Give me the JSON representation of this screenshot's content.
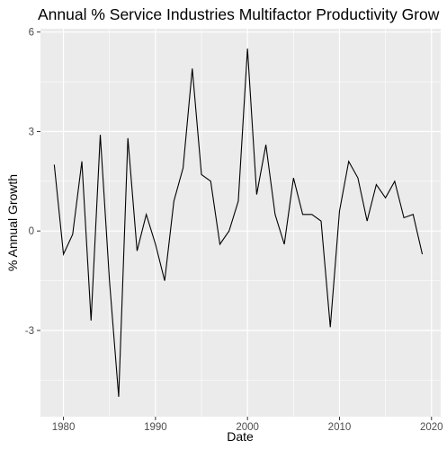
{
  "chart_data": {
    "type": "line",
    "title": "Annual % Service Industries Multifactor Productivity Grow",
    "xlabel": "Date",
    "ylabel": "% Annual Growth",
    "xlim": [
      1977.5,
      2021
    ],
    "ylim": [
      -5.6,
      6.1
    ],
    "x_ticks": [
      1980,
      1990,
      2000,
      2010,
      2020
    ],
    "x_tick_labels": [
      "1980",
      "1990",
      "2000",
      "2010",
      "2020"
    ],
    "y_ticks": [
      -3,
      0,
      3,
      6
    ],
    "y_tick_labels": [
      "-3",
      "0",
      "3",
      "6"
    ],
    "grid": true,
    "legend": "none",
    "colors": {
      "panel": "#ebebeb",
      "grid": "#ffffff",
      "line": "#000000",
      "tick_text": "#4d4d4d",
      "label_text": "#000000"
    },
    "series": [
      {
        "x": [
          1979,
          1980,
          1981,
          1982,
          1983,
          1984,
          1985,
          1986,
          1987,
          1988,
          1989,
          1990,
          1991,
          1992,
          1993,
          1994,
          1995,
          1996,
          1997,
          1998,
          1999,
          2000,
          2001,
          2002,
          2003,
          2004,
          2005,
          2006,
          2007,
          2008,
          2009,
          2010,
          2011,
          2012,
          2013,
          2014,
          2015,
          2016,
          2017,
          2018,
          2019
        ],
        "values": [
          2.0,
          -0.7,
          -0.1,
          2.1,
          -2.7,
          2.9,
          -1.5,
          -5.0,
          2.8,
          -0.6,
          0.5,
          -0.4,
          -1.5,
          0.9,
          1.9,
          4.9,
          1.7,
          1.5,
          -0.4,
          0.0,
          0.9,
          5.5,
          1.1,
          2.6,
          0.5,
          -0.4,
          1.6,
          0.5,
          0.5,
          0.3,
          -2.9,
          0.6,
          2.1,
          1.6,
          0.3,
          1.4,
          1.0,
          1.5,
          0.4,
          0.5,
          -0.7
        ]
      }
    ]
  }
}
